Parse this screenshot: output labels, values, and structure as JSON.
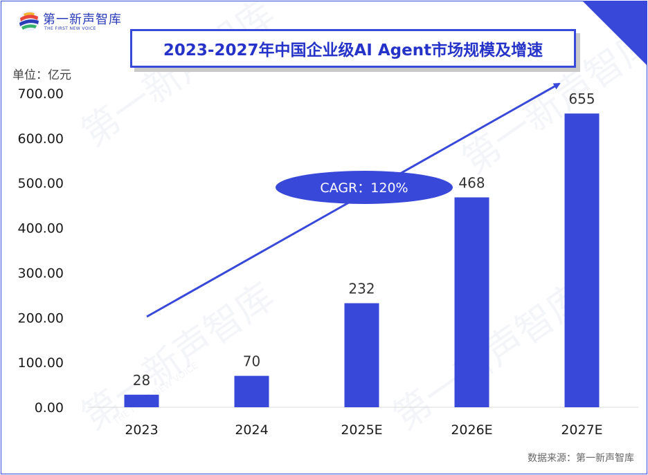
{
  "header": {
    "logo_text": "第一新声智库",
    "logo_subtitle": "THE FIRST NEW VOICE",
    "title": "2023-2027年中国企业级AI Agent市场规模及增速"
  },
  "unit_label": "单位：亿元",
  "source_label": "数据来源：第一新声智库",
  "annotation": {
    "text": "CAGR：120%"
  },
  "colors": {
    "accent": "#3848d8",
    "bar": "#3848d8",
    "title_text": "#2633c8"
  },
  "chart_data": {
    "type": "bar",
    "title": "2023-2027年中国企业级AI Agent市场规模及增速",
    "ylabel": "单位：亿元",
    "categories": [
      "2023",
      "2024",
      "2025E",
      "2026E",
      "2027E"
    ],
    "values": [
      28,
      70,
      232,
      468,
      655
    ],
    "value_labels": [
      "28",
      "70",
      "232",
      "468",
      "655"
    ],
    "yticks": [
      "0.00",
      "100.00",
      "200.00",
      "300.00",
      "400.00",
      "500.00",
      "600.00",
      "700.00"
    ],
    "ylim": [
      0,
      700
    ],
    "grid": false,
    "legend": "none"
  }
}
